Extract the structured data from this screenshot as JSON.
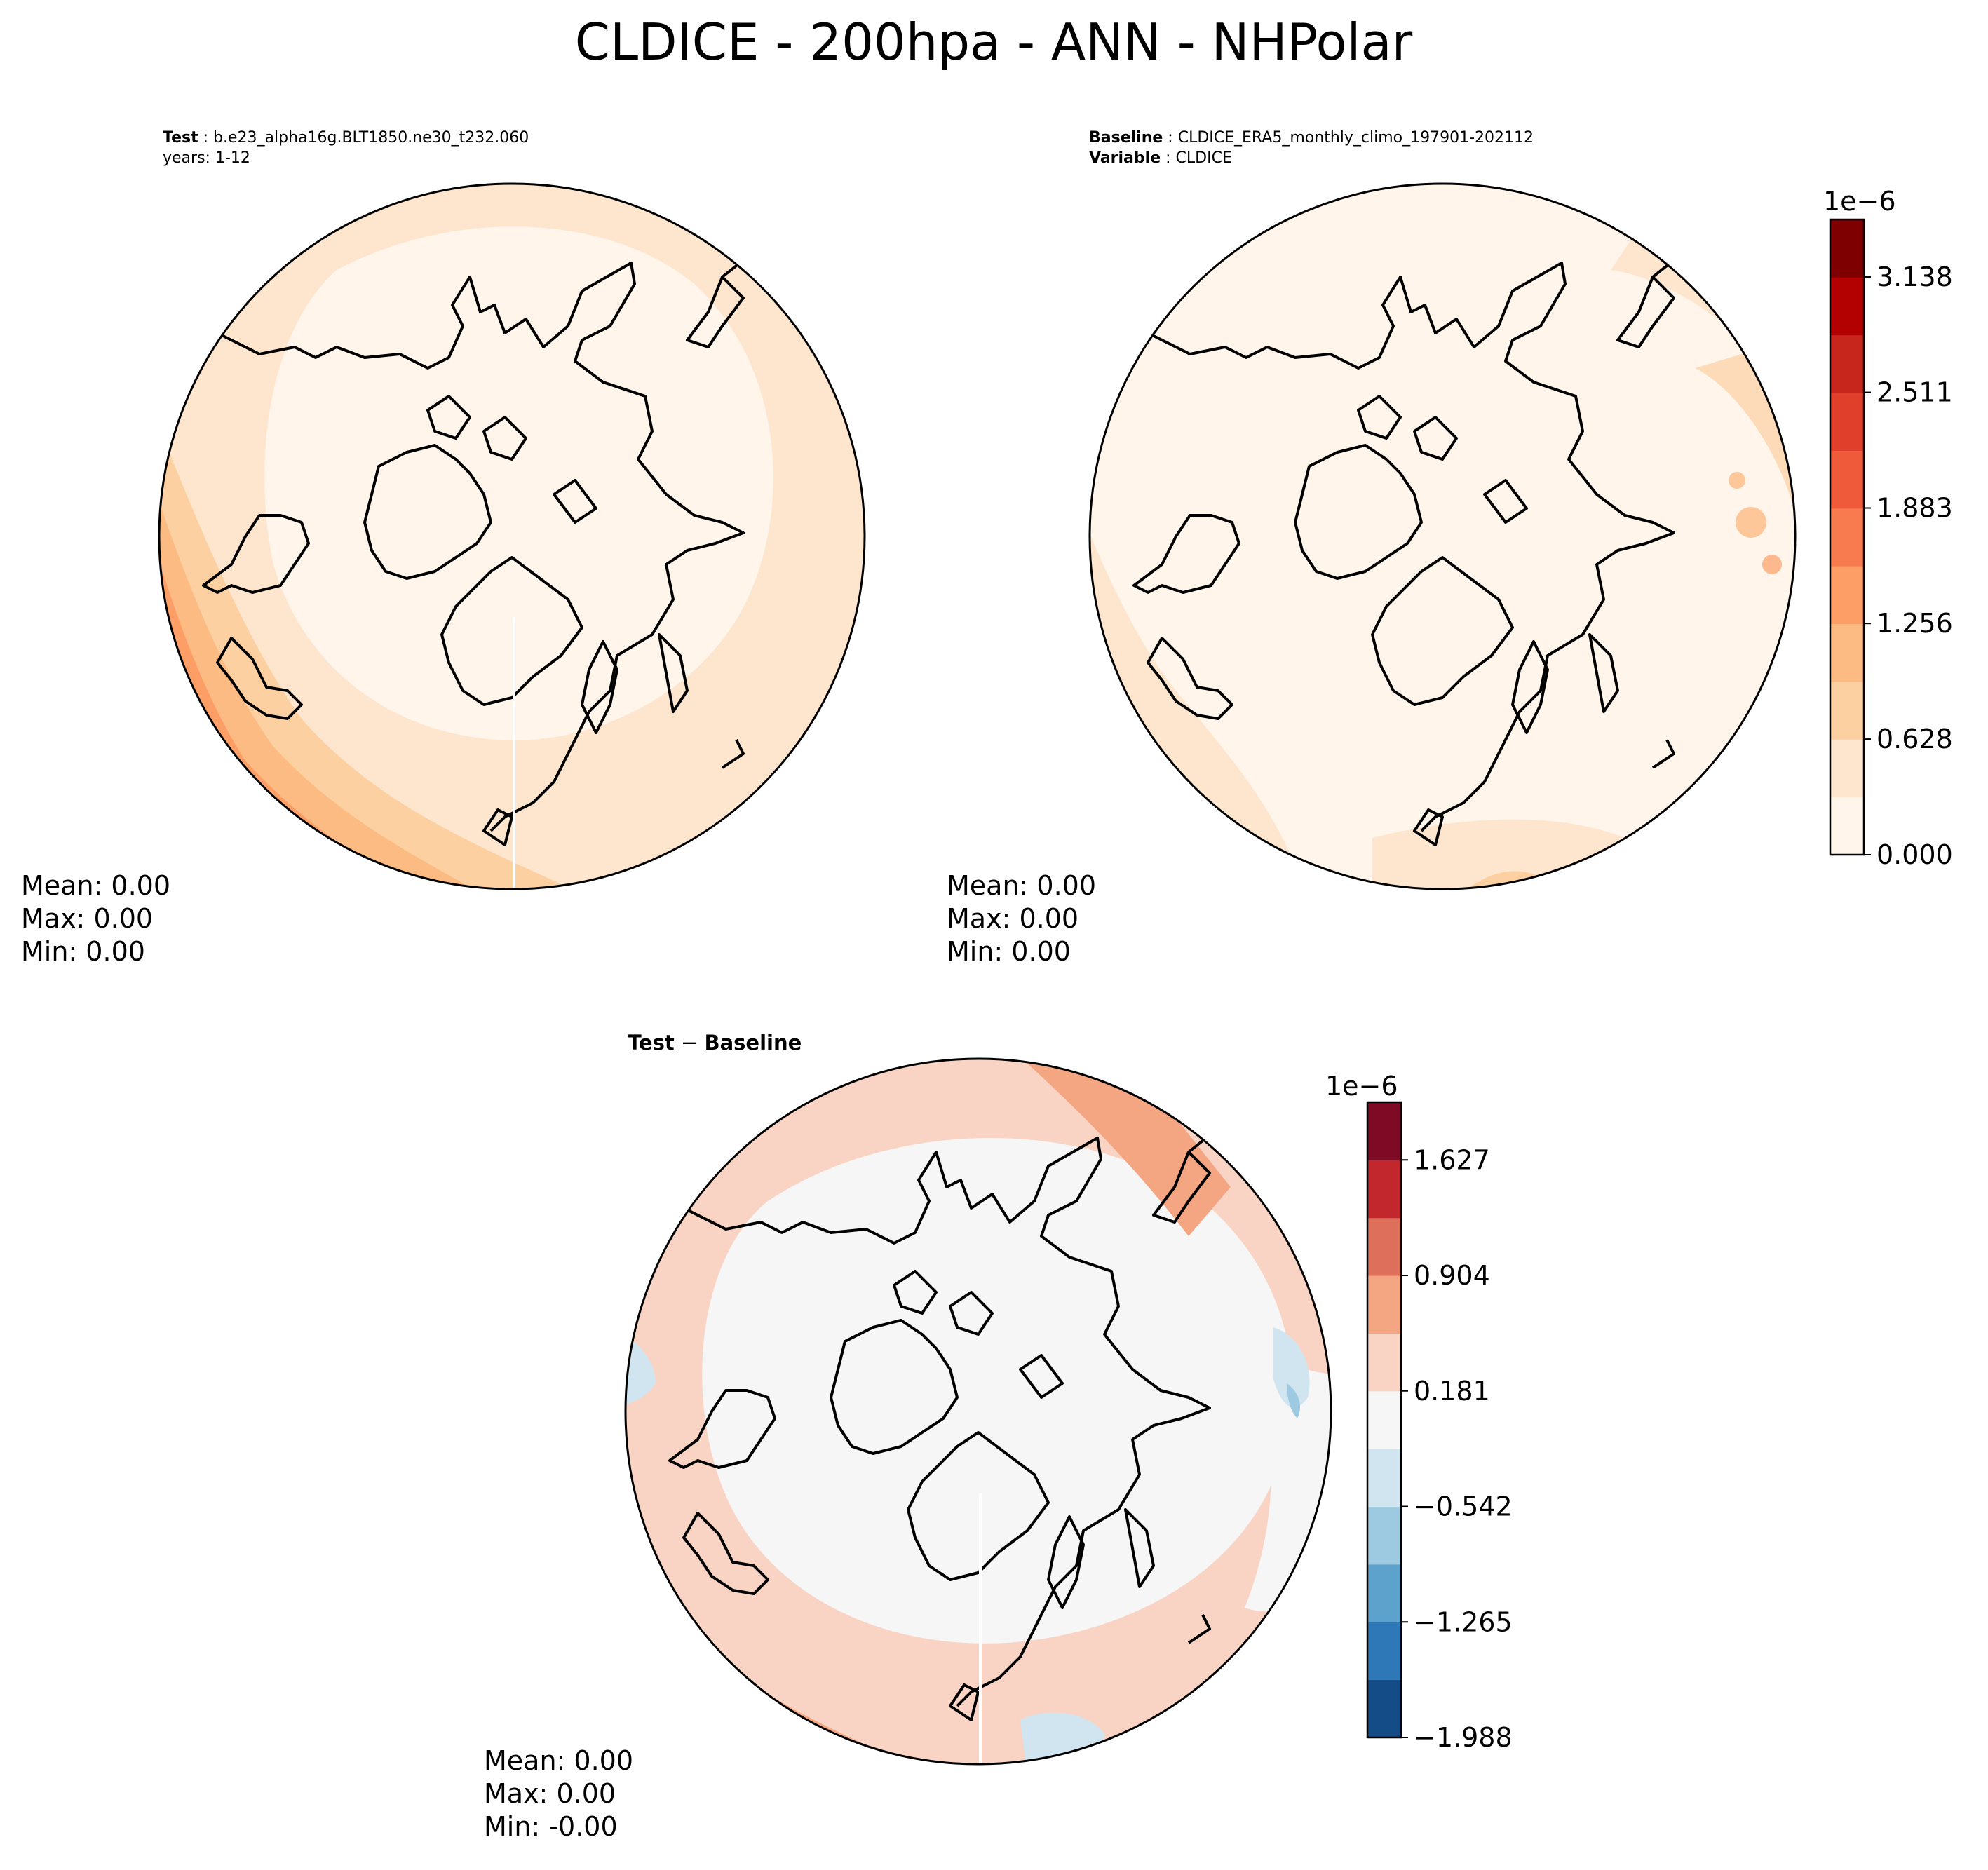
{
  "title": "CLDICE - 200hpa - ANN - NHPolar",
  "panels": {
    "test": {
      "label": "Test",
      "name": "b.e23_alpha16g.BLT1850.ne30_t232.060",
      "years": "years: 1-12",
      "stats": {
        "mean": "Mean:  0.00",
        "max": "Max:  0.00",
        "min": "Min:  0.00"
      }
    },
    "baseline": {
      "label": "Baseline",
      "name": "CLDICE_ERA5_monthly_climo_197901-202112",
      "var_label": "Variable",
      "var_name": "CLDICE",
      "stats": {
        "mean": "Mean:  0.00",
        "max": "Max:  0.00",
        "min": "Min:  0.00"
      }
    },
    "diff": {
      "title_a": "Test",
      "title_op": " − ",
      "title_b": "Baseline",
      "stats": {
        "mean": "Mean:  0.00",
        "max": "Max:  0.00",
        "min": "Min: -0.00"
      }
    }
  },
  "chart_data": [
    {
      "type": "heatmap",
      "projection": "north-polar-stereographic",
      "panel": "Test",
      "field": "CLDICE",
      "colormap": "OrRd-like",
      "colorbar": "shared with Baseline",
      "pattern": "near 0 over Arctic, increasing toward edges; maximum along Pacific/North America edge and Siberia side"
    },
    {
      "type": "heatmap",
      "projection": "north-polar-stereographic",
      "panel": "Baseline",
      "field": "CLDICE",
      "colormap": "OrRd-like",
      "colorbar": {
        "multiplier": "1e−6",
        "ticks": [
          "0.000",
          "0.628",
          "1.256",
          "1.883",
          "2.511",
          "3.138"
        ],
        "tick_values": [
          0.0,
          0.628,
          1.256,
          1.883,
          2.511,
          3.138
        ],
        "range": [
          0.0,
          3.45
        ],
        "colors": [
          "#fff5eb",
          "#fee6ce",
          "#fdd0a2",
          "#fdbb84",
          "#fc9e66",
          "#f77b4f",
          "#ef5b3a",
          "#e03f2c",
          "#c6261c",
          "#b30000",
          "#7f0000"
        ]
      },
      "pattern": "mostly near 0; local maximum at left edge (North Pacific)"
    },
    {
      "type": "heatmap",
      "projection": "north-polar-stereographic",
      "panel": "Test - Baseline",
      "field": "CLDICE difference",
      "colormap": "RdBu_r",
      "colorbar": {
        "multiplier": "1e−6",
        "ticks": [
          "−1.988",
          "−1.265",
          "−0.542",
          "0.181",
          "0.904",
          "1.627"
        ],
        "tick_values": [
          -1.988,
          -1.265,
          -0.542,
          0.181,
          0.904,
          1.627
        ],
        "range": [
          -1.988,
          1.988
        ],
        "colors": [
          "#144c87",
          "#2e78b8",
          "#5da2cd",
          "#9ecae1",
          "#d1e5f0",
          "#f6f6f6",
          "#f9d4c4",
          "#f4a582",
          "#dd6f5b",
          "#c1272d",
          "#7f0a26"
        ]
      },
      "pattern": "positive at Pacific/Siberian edges, near zero over Arctic, small negative patches near Atlantic edge"
    }
  ]
}
